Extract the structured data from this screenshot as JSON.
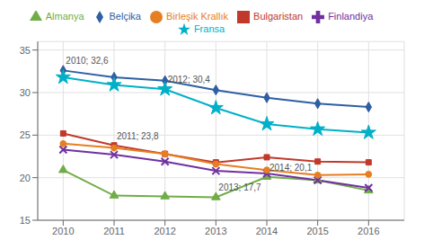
{
  "chart_data": {
    "type": "line",
    "x": [
      2010,
      2011,
      2012,
      2013,
      2014,
      2015,
      2016
    ],
    "xlim": [
      2009.5,
      2016.7
    ],
    "xticks": [
      2010,
      2011,
      2012,
      2013,
      2014,
      2015,
      2016
    ],
    "ylim": [
      15,
      36
    ],
    "yticks": [
      15,
      20,
      25,
      30,
      35
    ],
    "grid": true,
    "legend": "top",
    "series": [
      {
        "name": "Belçika",
        "color": "#2e5fa3",
        "marker": "diamond",
        "values": [
          32.6,
          31.8,
          31.4,
          30.3,
          29.4,
          28.7,
          28.3
        ]
      },
      {
        "name": "Bulgaristan",
        "color": "#c0392b",
        "marker": "square",
        "values": [
          25.2,
          23.8,
          22.8,
          21.8,
          22.4,
          21.9,
          21.8
        ]
      },
      {
        "name": "Almanya",
        "color": "#70ad47",
        "marker": "triangle",
        "values": [
          20.9,
          17.9,
          17.8,
          17.7,
          20.1,
          19.7,
          18.5
        ]
      },
      {
        "name": "Finlandiya",
        "color": "#7030a0",
        "marker": "x",
        "values": [
          23.3,
          22.7,
          21.9,
          20.8,
          20.5,
          19.7,
          18.8
        ]
      },
      {
        "name": "Fransa",
        "color": "#00b0c8",
        "marker": "star",
        "values": [
          31.8,
          30.9,
          30.4,
          28.2,
          26.3,
          25.7,
          25.3
        ]
      },
      {
        "name": "Birleşik Krallık",
        "color": "#e67e22",
        "marker": "circle",
        "values": [
          24.0,
          23.5,
          22.8,
          21.6,
          20.9,
          20.3,
          20.4
        ]
      }
    ],
    "annotations": [
      {
        "text": "2010; 32,6",
        "x": 2010,
        "y": 32.6
      },
      {
        "text": "2011; 23,8",
        "x": 2011,
        "y": 23.8
      },
      {
        "text": "2012; 30,4",
        "x": 2012,
        "y": 30.4
      },
      {
        "text": "2013; 17,7",
        "x": 2013,
        "y": 17.7
      },
      {
        "text": "2014; 20,1",
        "x": 2014,
        "y": 20.1
      }
    ]
  }
}
